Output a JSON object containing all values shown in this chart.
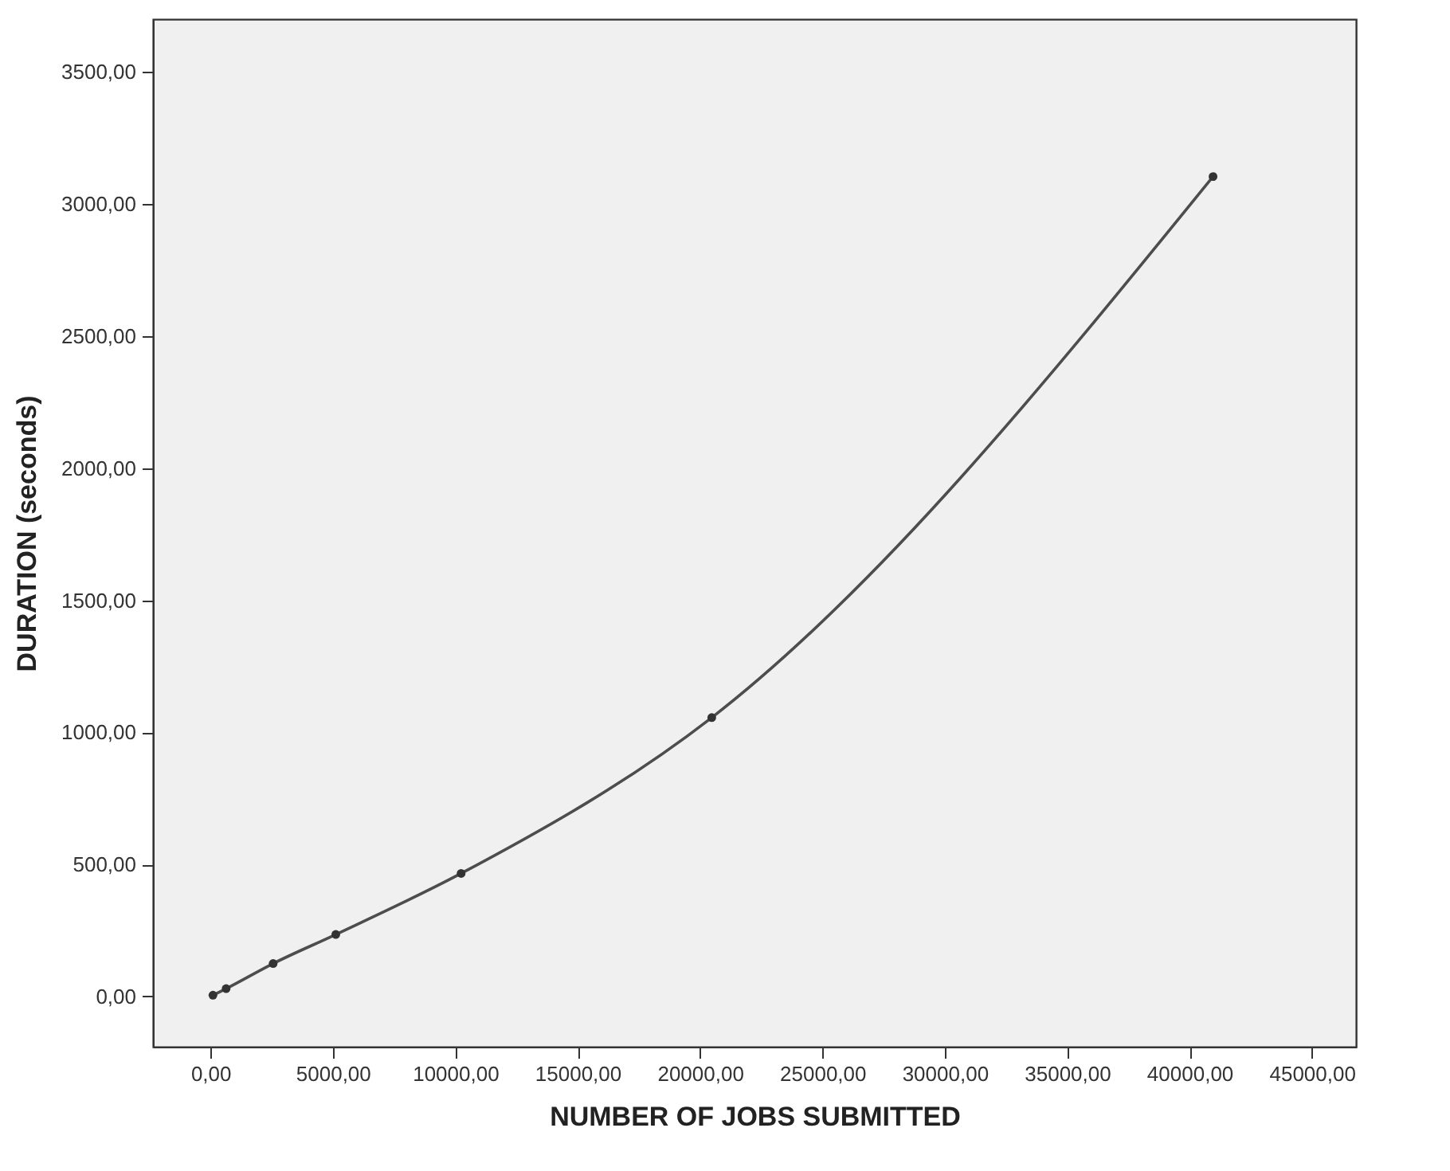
{
  "chart_data": {
    "type": "line",
    "xlabel": "NUMBER OF JOBS SUBMITTED",
    "ylabel": "DURATION (seconds)",
    "x": [
      100,
      640,
      2560,
      5120,
      10240,
      20480,
      40960
    ],
    "series": [
      {
        "color": "#4d4d4d",
        "values": [
          5,
          30,
          125,
          235,
          466,
          1056,
          3104
        ]
      }
    ],
    "xlim": [
      -2350,
      46800
    ],
    "ylim": [
      -190,
      3700
    ],
    "xticks": [
      {
        "value": 0,
        "label": "0,00"
      },
      {
        "value": 5000,
        "label": "5000,00"
      },
      {
        "value": 10000,
        "label": "10000,00"
      },
      {
        "value": 15000,
        "label": "15000,00"
      },
      {
        "value": 20000,
        "label": "20000,00"
      },
      {
        "value": 25000,
        "label": "25000,00"
      },
      {
        "value": 30000,
        "label": "30000,00"
      },
      {
        "value": 35000,
        "label": "35000,00"
      },
      {
        "value": 40000,
        "label": "40000,00"
      },
      {
        "value": 45000,
        "label": "45000,00"
      }
    ],
    "yticks": [
      {
        "value": 0,
        "label": "0,00"
      },
      {
        "value": 500,
        "label": "500,00"
      },
      {
        "value": 1000,
        "label": "1000,00"
      },
      {
        "value": 1500,
        "label": "1500,00"
      },
      {
        "value": 2000,
        "label": "2000,00"
      },
      {
        "value": 2500,
        "label": "2500,00"
      },
      {
        "value": 3000,
        "label": "3000,00"
      },
      {
        "value": 3500,
        "label": "3500,00"
      }
    ],
    "grid": false,
    "marker": "circle",
    "line_style": "solid"
  }
}
